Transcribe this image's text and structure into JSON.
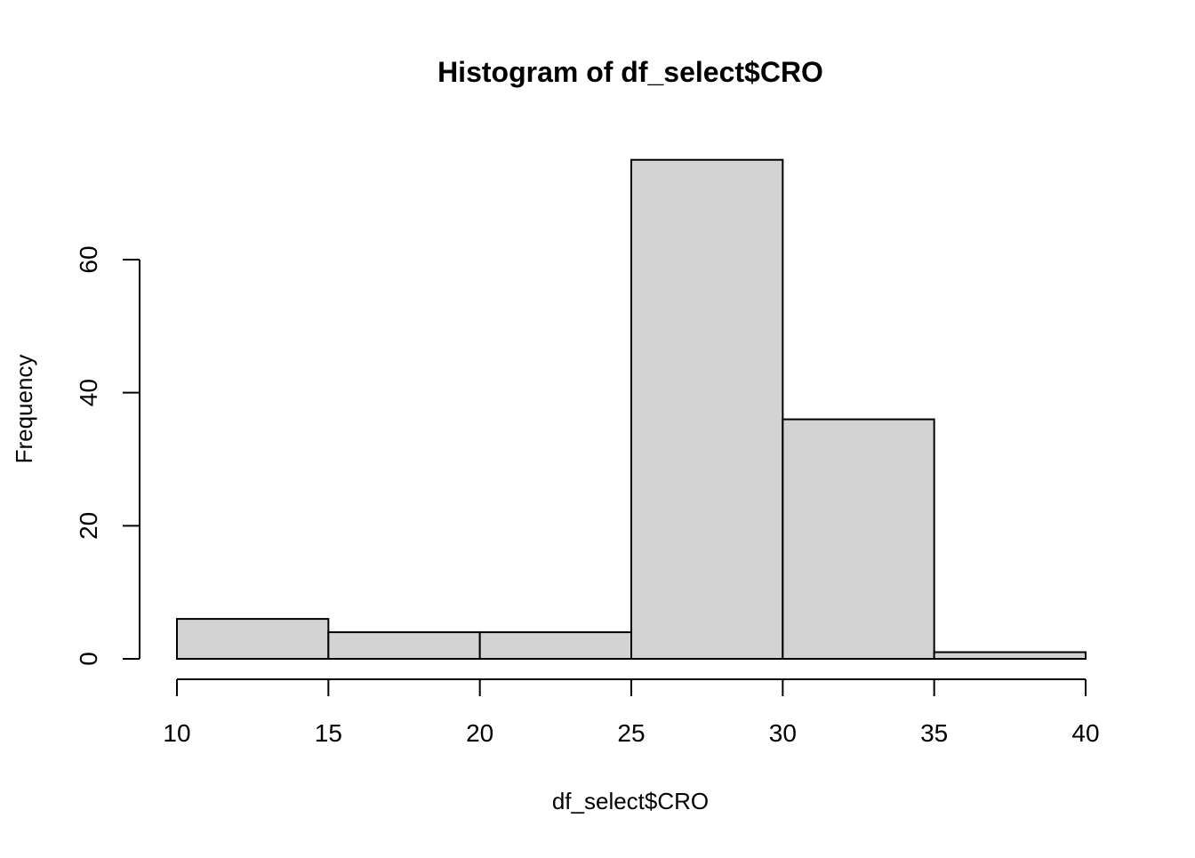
{
  "chart_data": {
    "type": "bar",
    "title": "Histogram of df_select$CRO",
    "xlabel": "df_select$CRO",
    "ylabel": "Frequency",
    "bin_edges": [
      10,
      15,
      20,
      25,
      30,
      35,
      40
    ],
    "values": [
      6,
      4,
      4,
      75,
      36,
      1
    ],
    "x_ticks": [
      "10",
      "15",
      "20",
      "25",
      "30",
      "35",
      "40"
    ],
    "y_ticks": [
      "0",
      "20",
      "40",
      "60"
    ],
    "xlim": [
      10,
      40
    ],
    "ylim": [
      0,
      75
    ],
    "grid": false,
    "bar_color": "#d3d3d3",
    "edge_color": "#000000"
  }
}
